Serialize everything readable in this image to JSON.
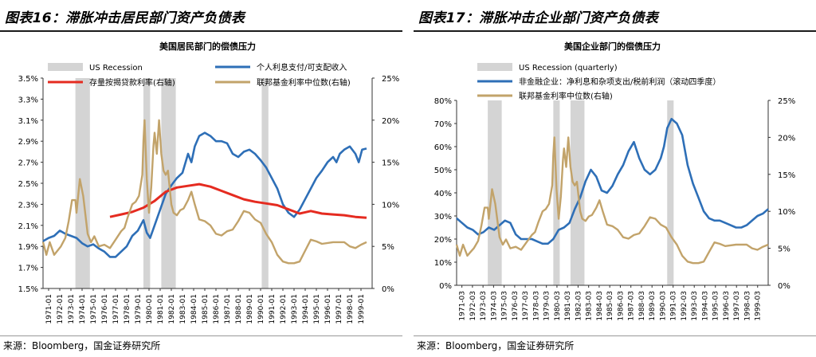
{
  "panels": [
    {
      "title": "图表16：滞胀冲击居民部门资产负债表",
      "source": "来源：Bloomberg，国金证券研究所",
      "chart_data": {
        "type": "line",
        "title": "美国居民部门的偿债压力",
        "x_range": [
          1971,
          2000.5
        ],
        "x_tick_labels": [
          "1971-01",
          "1972-01",
          "1973-01",
          "1974-01",
          "1975-01",
          "1976-01",
          "1977-01",
          "1978-01",
          "1979-01",
          "1980-01",
          "1981-01",
          "1982-01",
          "1983-01",
          "1984-01",
          "1985-01",
          "1986-01",
          "1987-01",
          "1988-01",
          "1989-01",
          "1990-01",
          "1991-01",
          "1992-01",
          "1993-01",
          "1994-01",
          "1995-01",
          "1996-01",
          "1997-01",
          "1998-01",
          "1999-01"
        ],
        "left_ticks": [
          "3.5%",
          "3.3%",
          "3.1%",
          "2.9%",
          "2.7%",
          "2.5%",
          "2.3%",
          "2.1%",
          "1.9%",
          "1.7%",
          "1.5%"
        ],
        "left_range": [
          1.5,
          3.5
        ],
        "right_ticks": [
          "25%",
          "20%",
          "15%",
          "10%",
          "5%",
          "0%"
        ],
        "right_range": [
          0,
          25
        ],
        "legend": [
          "US Recession",
          "个人利息支付/可支配收入",
          "存量按揭贷款利率(右轴)",
          "联邦基金利率中位数(右轴)"
        ],
        "recessions": [
          [
            1973.9,
            1975.2
          ],
          [
            1980.0,
            1980.6
          ],
          [
            1981.6,
            1982.9
          ],
          [
            1990.6,
            1991.2
          ]
        ],
        "series": [
          {
            "name": "个人利息支付/可支配收入",
            "axis": "left",
            "color": "#2e6fb7",
            "x": [
              1971,
              1971.5,
              1972,
              1972.5,
              1973,
              1973.5,
              1974,
              1974.5,
              1975,
              1975.5,
              1976,
              1976.5,
              1977,
              1977.5,
              1978,
              1978.5,
              1979,
              1979.5,
              1980,
              1980.3,
              1980.6,
              1981,
              1981.5,
              1982,
              1982.5,
              1983,
              1983.5,
              1984,
              1984.3,
              1984.6,
              1985,
              1985.5,
              1986,
              1986.5,
              1987,
              1987.5,
              1988,
              1988.5,
              1989,
              1989.5,
              1990,
              1990.5,
              1991,
              1991.5,
              1992,
              1992.5,
              1993,
              1993.5,
              1994,
              1994.5,
              1995,
              1995.5,
              1996,
              1996.5,
              1997,
              1997.3,
              1997.6,
              1998,
              1998.5,
              1999,
              1999.3,
              1999.6,
              2000
            ],
            "y": [
              1.95,
              1.98,
              2.0,
              2.05,
              2.02,
              2.0,
              1.98,
              1.93,
              1.9,
              1.92,
              1.88,
              1.85,
              1.8,
              1.8,
              1.85,
              1.9,
              2.0,
              2.05,
              2.15,
              2.03,
              1.98,
              2.1,
              2.25,
              2.4,
              2.48,
              2.55,
              2.6,
              2.78,
              2.7,
              2.85,
              2.95,
              2.98,
              2.95,
              2.9,
              2.9,
              2.88,
              2.78,
              2.75,
              2.8,
              2.82,
              2.78,
              2.72,
              2.65,
              2.55,
              2.45,
              2.3,
              2.22,
              2.18,
              2.25,
              2.35,
              2.45,
              2.55,
              2.62,
              2.7,
              2.75,
              2.7,
              2.78,
              2.82,
              2.85,
              2.78,
              2.7,
              2.82,
              2.83
            ]
          },
          {
            "name": "存量按揭贷款利率(右轴)",
            "axis": "right",
            "color": "#e52b20",
            "x": [
              1977,
              1978,
              1979,
              1980,
              1981,
              1982,
              1983,
              1984,
              1985,
              1986,
              1987,
              1988,
              1989,
              1990,
              1991,
              1992,
              1993,
              1994,
              1995,
              1996,
              1997,
              1998,
              1999,
              2000
            ],
            "y": [
              8.5,
              8.8,
              9.1,
              9.6,
              10.4,
              11.5,
              12.0,
              12.2,
              12.4,
              12.1,
              11.6,
              11.1,
              10.6,
              10.3,
              10.1,
              9.9,
              9.4,
              8.9,
              9.2,
              8.9,
              8.8,
              8.7,
              8.5,
              8.4
            ]
          },
          {
            "name": "联邦基金利率中位数(右轴)",
            "axis": "right",
            "color": "#c2a36a",
            "x": [
              1971,
              1971.3,
              1971.6,
              1972,
              1972.3,
              1972.6,
              1973,
              1973.3,
              1973.6,
              1973.9,
              1974,
              1974.3,
              1974.6,
              1975,
              1975.3,
              1975.6,
              1976,
              1976.5,
              1977,
              1977.5,
              1978,
              1978.3,
              1978.6,
              1979,
              1979.3,
              1979.6,
              1979.9,
              1980,
              1980.1,
              1980.3,
              1980.5,
              1980.7,
              1980.9,
              1981,
              1981.2,
              1981.4,
              1981.6,
              1981.8,
              1982,
              1982.2,
              1982.5,
              1982.7,
              1983,
              1983.3,
              1983.6,
              1984,
              1984.3,
              1984.6,
              1985,
              1985.5,
              1986,
              1986.5,
              1987,
              1987.5,
              1988,
              1988.5,
              1989,
              1989.5,
              1990,
              1990.5,
              1991,
              1991.5,
              1992,
              1992.5,
              1993,
              1993.5,
              1994,
              1994.5,
              1995,
              1995.5,
              1996,
              1997,
              1998,
              1998.5,
              1999,
              1999.5,
              2000
            ],
            "y": [
              5.5,
              4.0,
              5.5,
              4.0,
              4.5,
              5.0,
              6.0,
              8.0,
              10.5,
              10.5,
              9.0,
              13.0,
              11.0,
              6.5,
              5.5,
              6.2,
              5.0,
              5.2,
              4.8,
              5.8,
              6.8,
              7.2,
              8.5,
              10.0,
              10.3,
              11.0,
              13.5,
              17.5,
              20.0,
              13.0,
              9.0,
              12.0,
              17.0,
              18.5,
              16.0,
              20.0,
              16.0,
              14.0,
              13.5,
              14.0,
              10.0,
              9.0,
              8.7,
              9.3,
              9.5,
              10.5,
              11.5,
              10.0,
              8.2,
              8.0,
              7.5,
              6.5,
              6.3,
              6.8,
              7.0,
              8.0,
              9.2,
              9.0,
              8.2,
              7.8,
              6.5,
              5.5,
              4.0,
              3.2,
              3.0,
              3.0,
              3.2,
              4.5,
              5.8,
              5.6,
              5.3,
              5.5,
              5.5,
              5.0,
              4.8,
              5.2,
              5.5
            ]
          }
        ]
      }
    },
    {
      "title": "图表17：滞胀冲击企业部门资产负债表",
      "source": "来源：Bloomberg，国金证券研究所",
      "chart_data": {
        "type": "line",
        "title": "美国企业部门的偿债压力",
        "x_range": [
          1971,
          2000
        ],
        "x_tick_labels": [
          "1971-03",
          "1972-03",
          "1973-03",
          "1974-03",
          "1975-03",
          "1976-03",
          "1977-03",
          "1978-03",
          "1979-03",
          "1980-03",
          "1981-03",
          "1982-03",
          "1983-03",
          "1984-03",
          "1985-03",
          "1986-03",
          "1987-03",
          "1988-03",
          "1989-03",
          "1990-03",
          "1991-03",
          "1992-03",
          "1993-03",
          "1994-03",
          "1995-03",
          "1996-03",
          "1997-03",
          "1998-03",
          "1999-03"
        ],
        "left_ticks": [
          "80%",
          "70%",
          "60%",
          "50%",
          "40%",
          "30%",
          "20%",
          "10%",
          "0%"
        ],
        "left_range": [
          0,
          80
        ],
        "right_ticks": [
          "25%",
          "20%",
          "15%",
          "10%",
          "5%",
          "0%"
        ],
        "right_range": [
          0,
          25
        ],
        "legend": [
          "US Recession (quarterly)",
          "非金融企业：净利息和杂项支出/税前利润（滚动四季度）",
          "联邦基金利率中位数(右轴)"
        ],
        "recessions": [
          [
            1973.9,
            1975.2
          ],
          [
            1980.0,
            1980.6
          ],
          [
            1981.6,
            1982.9
          ],
          [
            1990.6,
            1991.2
          ]
        ],
        "series": [
          {
            "name": "非金融企业：净利息和杂项支出/税前利润（滚动四季度）",
            "axis": "left",
            "color": "#2e6fb7",
            "x": [
              1971,
              1971.5,
              1972,
              1972.5,
              1973,
              1973.5,
              1974,
              1974.5,
              1975,
              1975.5,
              1976,
              1976.5,
              1977,
              1977.5,
              1978,
              1978.5,
              1979,
              1979.5,
              1980,
              1980.5,
              1981,
              1981.5,
              1982,
              1982.5,
              1983,
              1983.5,
              1984,
              1984.5,
              1985,
              1985.5,
              1986,
              1986.5,
              1987,
              1987.5,
              1988,
              1988.5,
              1989,
              1989.5,
              1990,
              1990.3,
              1990.6,
              1991,
              1991.5,
              1992,
              1992.5,
              1993,
              1993.5,
              1994,
              1994.5,
              1995,
              1995.5,
              1996,
              1996.5,
              1997,
              1997.5,
              1998,
              1998.5,
              1999,
              1999.5,
              2000
            ],
            "y": [
              29,
              27,
              25,
              24,
              22,
              23,
              25,
              24,
              26,
              28,
              27,
              22,
              20,
              20,
              20,
              19,
              18,
              18,
              20,
              24,
              25,
              27,
              33,
              38,
              45,
              50,
              47,
              41,
              40,
              43,
              48,
              52,
              58,
              62,
              55,
              50,
              48,
              50,
              55,
              60,
              68,
              72,
              70,
              65,
              52,
              44,
              38,
              32,
              29,
              28,
              28,
              27,
              26,
              25,
              25,
              26,
              28,
              30,
              31,
              33
            ]
          },
          {
            "name": "联邦基金利率中位数(右轴)",
            "axis": "right",
            "color": "#c2a36a",
            "x": [
              1971,
              1971.3,
              1971.6,
              1972,
              1972.3,
              1972.6,
              1973,
              1973.3,
              1973.6,
              1973.9,
              1974,
              1974.3,
              1974.6,
              1975,
              1975.3,
              1975.6,
              1976,
              1976.5,
              1977,
              1977.5,
              1978,
              1978.3,
              1978.6,
              1979,
              1979.3,
              1979.6,
              1979.9,
              1980,
              1980.1,
              1980.3,
              1980.5,
              1980.7,
              1980.9,
              1981,
              1981.2,
              1981.4,
              1981.6,
              1981.8,
              1982,
              1982.2,
              1982.5,
              1982.7,
              1983,
              1983.3,
              1983.6,
              1984,
              1984.3,
              1984.6,
              1985,
              1985.5,
              1986,
              1986.5,
              1987,
              1987.5,
              1988,
              1988.5,
              1989,
              1989.5,
              1990,
              1990.5,
              1991,
              1991.5,
              1992,
              1992.5,
              1993,
              1993.5,
              1994,
              1994.5,
              1995,
              1995.5,
              1996,
              1997,
              1998,
              1998.5,
              1999,
              1999.5,
              2000
            ],
            "y": [
              5.5,
              4.0,
              5.5,
              4.0,
              4.5,
              5.0,
              6.0,
              8.0,
              10.5,
              10.5,
              9.0,
              13.0,
              11.0,
              6.5,
              5.5,
              6.2,
              5.0,
              5.2,
              4.8,
              5.8,
              6.8,
              7.2,
              8.5,
              10.0,
              10.3,
              11.0,
              13.5,
              17.5,
              20.0,
              13.0,
              9.0,
              12.0,
              17.0,
              18.5,
              16.0,
              20.0,
              16.0,
              14.0,
              13.5,
              14.0,
              10.0,
              9.0,
              8.7,
              9.3,
              9.5,
              10.5,
              11.5,
              10.0,
              8.2,
              8.0,
              7.5,
              6.5,
              6.3,
              6.8,
              7.0,
              8.0,
              9.2,
              9.0,
              8.2,
              7.8,
              6.5,
              5.5,
              4.0,
              3.2,
              3.0,
              3.0,
              3.2,
              4.5,
              5.8,
              5.6,
              5.3,
              5.5,
              5.5,
              5.0,
              4.8,
              5.2,
              5.5
            ]
          }
        ]
      }
    }
  ]
}
